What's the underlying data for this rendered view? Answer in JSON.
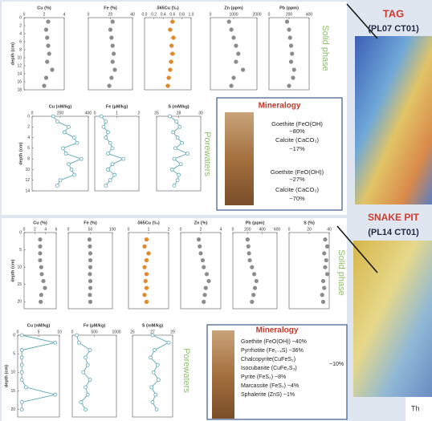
{
  "chart_data": [
    {
      "type": "scatter",
      "title": "Cu (%)",
      "ylabel": "depth (cm)",
      "color": "#8c8c8c",
      "xlim": [
        0,
        4
      ],
      "xticks": [
        0,
        2,
        4
      ],
      "ylim": [
        18,
        0
      ],
      "yticks": [
        0,
        2,
        4,
        6,
        8,
        10,
        12,
        14,
        16,
        18
      ],
      "x": [
        2.4,
        2.2,
        2.3,
        2.4,
        2.5,
        2.3,
        2.8,
        2.2,
        2.0
      ],
      "y": [
        1,
        3,
        5,
        7,
        9,
        11,
        13,
        15,
        17
      ]
    },
    {
      "type": "scatter",
      "title": "Fe (%)",
      "color": "#8c8c8c",
      "xlim": [
        0,
        40
      ],
      "xticks": [
        0,
        20,
        40
      ],
      "ylim": [
        18,
        0
      ],
      "x": [
        22,
        20,
        21,
        22,
        23,
        22,
        24,
        21,
        19
      ],
      "y": [
        1,
        3,
        5,
        7,
        9,
        11,
        13,
        15,
        17
      ]
    },
    {
      "type": "scatter",
      "title": "δ65Cu (‰)",
      "color": "#e08a2c",
      "xlim": [
        0,
        1
      ],
      "xticks": [
        {
          "value": 0,
          "label": "0.0"
        },
        {
          "value": 0.2,
          "label": "0.2"
        },
        {
          "value": 0.4,
          "label": "0.4"
        },
        {
          "value": 0.6,
          "label": "0.6"
        },
        {
          "value": 0.8,
          "label": "0.8"
        },
        {
          "value": 1,
          "label": "1.0"
        }
      ],
      "ylim": [
        18,
        0
      ],
      "x": [
        0.6,
        0.55,
        0.62,
        0.58,
        0.6,
        0.57,
        0.55,
        0.52,
        0.5
      ],
      "errors": [
        0.05,
        0.05,
        0.06,
        0.05,
        0.06,
        0.05,
        0.05,
        0.05,
        0.05
      ],
      "y": [
        1,
        3,
        5,
        7,
        9,
        11,
        13,
        15,
        17
      ]
    },
    {
      "type": "scatter",
      "title": "Zn (ppm)",
      "color": "#8c8c8c",
      "xlim": [
        0,
        2000
      ],
      "xticks": [
        0,
        1000,
        2000
      ],
      "ylim": [
        18,
        0
      ],
      "x": [
        800,
        900,
        1000,
        1100,
        1200,
        1100,
        1400,
        1000,
        900
      ],
      "y": [
        1,
        3,
        5,
        7,
        9,
        11,
        13,
        15,
        17
      ]
    },
    {
      "type": "scatter",
      "title": "Pb (ppm)",
      "color": "#8c8c8c",
      "xlim": [
        0,
        400
      ],
      "xticks": [
        0,
        200,
        400
      ],
      "ylim": [
        18,
        0
      ],
      "x": [
        180,
        200,
        210,
        220,
        230,
        220,
        250,
        240,
        200
      ],
      "y": [
        1,
        3,
        5,
        7,
        9,
        11,
        13,
        15,
        17
      ]
    },
    {
      "type": "line",
      "title": "Cu (nM/kg)",
      "ylabel": "depth (cm)",
      "color": "#5ba6b4",
      "xlim": [
        0,
        400
      ],
      "xticks": [
        0,
        200,
        400
      ],
      "ylim": [
        14,
        0
      ],
      "yticks": [
        0,
        2,
        4,
        6,
        8,
        10,
        12,
        14
      ],
      "x": [
        150,
        180,
        260,
        230,
        300,
        320,
        220,
        240,
        350,
        260,
        280,
        300,
        200,
        180
      ],
      "y": [
        0,
        1,
        2,
        3,
        4,
        5,
        6,
        7,
        8,
        9,
        10,
        11,
        12,
        13
      ]
    },
    {
      "type": "line",
      "title": "Fe (µM/kg)",
      "color": "#5ba6b4",
      "xlim": [
        0,
        2
      ],
      "xticks": [
        0,
        1,
        2
      ],
      "ylim": [
        14,
        0
      ],
      "x": [
        0.3,
        0.5,
        0.4,
        0.6,
        0.5,
        0.7,
        0.8,
        0.6,
        1.3,
        0.8,
        0.6,
        0.9,
        0.7,
        0.5
      ],
      "y": [
        0,
        1,
        2,
        3,
        4,
        5,
        6,
        7,
        8,
        9,
        10,
        11,
        12,
        13
      ]
    },
    {
      "type": "line",
      "title": "S (mM/kg)",
      "color": "#5ba6b4",
      "xlim": [
        26,
        30
      ],
      "xticks": [
        26,
        28,
        30
      ],
      "ylim": [
        14,
        0
      ],
      "x": [
        27.2,
        27.8,
        28.1,
        27.5,
        27.9,
        28.3,
        27.7,
        28.8,
        27.6,
        28.2,
        27.4,
        28.0,
        27.9,
        27.6
      ],
      "y": [
        0,
        1,
        2,
        3,
        4,
        5,
        6,
        7,
        8,
        9,
        10,
        11,
        12,
        13
      ]
    },
    {
      "type": "scatter",
      "title": "Cu (%)",
      "ylabel": "depth (cm)",
      "color": "#8c8c8c",
      "xlim": [
        0,
        6
      ],
      "xticks": [
        0,
        2,
        4,
        6
      ],
      "ylim": [
        22,
        0
      ],
      "yticks": [
        0,
        5,
        10,
        15,
        20
      ],
      "x": [
        3,
        3,
        3,
        3,
        3.2,
        3.3,
        3.6,
        3.9,
        3.2,
        3.1
      ],
      "y": [
        2,
        4,
        6,
        8,
        10,
        12,
        14,
        16,
        18,
        20
      ]
    },
    {
      "type": "scatter",
      "title": "Fe (%)",
      "color": "#8c8c8c",
      "xlim": [
        0,
        100
      ],
      "xticks": [
        0,
        50,
        100
      ],
      "ylim": [
        22,
        0
      ],
      "x": [
        48,
        49,
        50,
        50,
        50,
        49,
        50,
        50,
        49,
        50
      ],
      "y": [
        2,
        4,
        6,
        8,
        10,
        12,
        14,
        16,
        18,
        20
      ]
    },
    {
      "type": "scatter",
      "title": "δ65Cu (‰)",
      "color": "#e08a2c",
      "xlim": [
        0,
        2
      ],
      "xticks": [
        0,
        1,
        2
      ],
      "ylim": [
        22,
        0
      ],
      "x": [
        0.9,
        0.8,
        1.0,
        0.9,
        0.8,
        0.9,
        0.85,
        0.9,
        0.8,
        0.9
      ],
      "errors": [
        0.1,
        0.1,
        0.12,
        0.1,
        0.1,
        0.1,
        0.1,
        0.12,
        0.1,
        0.1
      ],
      "y": [
        2,
        4,
        6,
        8,
        10,
        12,
        14,
        16,
        18,
        20
      ]
    },
    {
      "type": "scatter",
      "title": "Zn (%)",
      "color": "#8c8c8c",
      "xlim": [
        0,
        4
      ],
      "xticks": [
        0,
        2,
        4
      ],
      "ylim": [
        22,
        0
      ],
      "x": [
        1.8,
        1.9,
        2.0,
        2.2,
        2.3,
        2.6,
        2.8,
        2.5,
        2.4,
        2.3
      ],
      "y": [
        2,
        4,
        6,
        8,
        10,
        12,
        14,
        16,
        18,
        20
      ]
    },
    {
      "type": "scatter",
      "title": "Pb (ppm)",
      "color": "#8c8c8c",
      "xlim": [
        0,
        600
      ],
      "xticks": [
        0,
        200,
        400,
        600
      ],
      "ylim": [
        22,
        0
      ],
      "x": [
        200,
        210,
        220,
        230,
        260,
        290,
        320,
        300,
        280,
        260
      ],
      "y": [
        2,
        4,
        6,
        8,
        10,
        12,
        14,
        16,
        18,
        20
      ]
    },
    {
      "type": "scatter",
      "title": "S (%)",
      "color": "#8c8c8c",
      "xlim": [
        0,
        40
      ],
      "xticks": [
        0,
        20,
        40
      ],
      "ylim": [
        22,
        0
      ],
      "x": [
        36,
        38,
        35,
        37,
        36,
        38,
        34,
        35,
        33,
        34
      ],
      "y": [
        2,
        4,
        6,
        8,
        10,
        12,
        14,
        16,
        18,
        20
      ]
    },
    {
      "type": "line",
      "title": "Cu (nM/kg)",
      "ylabel": "depth (cm)",
      "color": "#5ba6b4",
      "xlim": [
        0,
        10
      ],
      "xticks": [
        0,
        5,
        10
      ],
      "ylim": [
        22,
        0
      ],
      "yticks": [
        0,
        5,
        10,
        15,
        20
      ],
      "x": [
        1,
        9,
        1,
        1,
        1,
        1,
        1,
        2,
        9,
        1,
        1
      ],
      "y": [
        0,
        2,
        4,
        6,
        8,
        10,
        12,
        14,
        16,
        18,
        20
      ]
    },
    {
      "type": "line",
      "title": "Fe (µM/kg)",
      "color": "#5ba6b4",
      "xlim": [
        0,
        1000
      ],
      "xticks": [
        0,
        500,
        1000
      ],
      "ylim": [
        22,
        0
      ],
      "x": [
        100,
        150,
        400,
        300,
        350,
        250,
        400,
        300,
        350,
        200,
        300
      ],
      "y": [
        0,
        2,
        4,
        6,
        8,
        10,
        12,
        14,
        16,
        18,
        20
      ]
    },
    {
      "type": "line",
      "title": "S (mM/kg)",
      "color": "#5ba6b4",
      "xlim": [
        25,
        29
      ],
      "xticks": [
        25,
        27,
        29
      ],
      "ylim": [
        22,
        0
      ],
      "x": [
        27,
        28.6,
        27.2,
        26.8,
        27.5,
        27.1,
        27.6,
        26.9,
        27.3,
        27.0,
        27.4
      ],
      "y": [
        0,
        2,
        4,
        6,
        8,
        10,
        12,
        14,
        16,
        18,
        20
      ]
    }
  ],
  "panels": [
    {
      "solid": "Solid phase",
      "pore": "Porewaters",
      "mineralogy": {
        "title": "Mineralogy",
        "lines": [
          "Goethite (FeO(OH)",
          "~80%",
          "Calcite (CaCO₃)",
          "~17%",
          "Goethite (FeO(OH))",
          "~27%",
          "Calcite (CaCO₃)",
          "~70%"
        ]
      }
    },
    {
      "solid": "Solid phase",
      "pore": "Porewaters",
      "mineralogy": {
        "title": "Mineralogy",
        "lines": [
          "Goethite (FeO(OH)) ~40%",
          "Pyrrhotite (Fe₁₋ₓS) ~36%",
          "Chalcopyrite(CuFeS₂)",
          "Isocubanite (CuFe₂S₃)",
          "~10%",
          "Pyrite (FeS₂) ~8%",
          "Marcassite (FeS₂) ~4%",
          "Sphalerite (ZnS) ~1%"
        ]
      }
    }
  ],
  "maps": [
    {
      "name": "TAG",
      "code": "(PL07 CT01)"
    },
    {
      "name": "SNAKE PIT",
      "code": "(PL14 CT01)"
    }
  ],
  "footer": "Th"
}
